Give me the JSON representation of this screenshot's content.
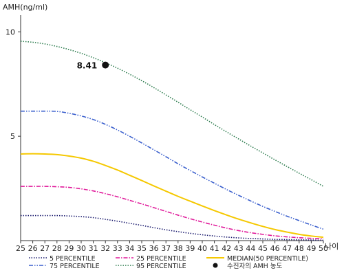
{
  "chart_data": {
    "type": "line",
    "ylabel": "AMH(ng/ml)",
    "xlabel": "나이",
    "xlim": [
      25,
      50
    ],
    "ylim": [
      0,
      10.8
    ],
    "x": [
      25,
      26,
      27,
      28,
      29,
      30,
      31,
      32,
      33,
      34,
      35,
      36,
      37,
      38,
      39,
      40,
      41,
      42,
      43,
      44,
      45,
      46,
      47,
      48,
      49,
      50
    ],
    "x_ticks": [
      "25",
      "26",
      "27",
      "28",
      "29",
      "30",
      "31",
      "32",
      "33",
      "34",
      "35",
      "36",
      "37",
      "38",
      "39",
      "40",
      "41",
      "42",
      "43",
      "44",
      "45",
      "46",
      "47",
      "48",
      "49",
      "50"
    ],
    "y_ticks": [
      {
        "value": 5,
        "label": "5"
      },
      {
        "value": 10,
        "label": "10"
      }
    ],
    "series": [
      {
        "name": "5 PERCENTILE",
        "style": "dotted",
        "color": "#1a1a6e",
        "values": [
          1.2,
          1.2,
          1.2,
          1.2,
          1.18,
          1.15,
          1.1,
          1.02,
          0.93,
          0.83,
          0.73,
          0.62,
          0.52,
          0.43,
          0.35,
          0.28,
          0.22,
          0.17,
          0.13,
          0.1,
          0.08,
          0.06,
          0.05,
          0.04,
          0.03,
          0.02
        ]
      },
      {
        "name": "25 PERCENTILE",
        "style": "dashdot",
        "color": "#e0199a",
        "values": [
          2.6,
          2.6,
          2.6,
          2.58,
          2.55,
          2.48,
          2.38,
          2.25,
          2.1,
          1.93,
          1.76,
          1.58,
          1.4,
          1.22,
          1.05,
          0.89,
          0.74,
          0.6,
          0.48,
          0.38,
          0.3,
          0.23,
          0.18,
          0.14,
          0.11,
          0.09
        ]
      },
      {
        "name": "MEDIAN(50 PERCENTILE)",
        "style": "solid",
        "color": "#f5c800",
        "values": [
          4.15,
          4.16,
          4.15,
          4.12,
          4.05,
          3.95,
          3.8,
          3.6,
          3.38,
          3.13,
          2.88,
          2.62,
          2.37,
          2.12,
          1.89,
          1.66,
          1.44,
          1.23,
          1.03,
          0.85,
          0.68,
          0.53,
          0.41,
          0.3,
          0.22,
          0.16
        ]
      },
      {
        "name": "75 PERCENTILE",
        "style": "dashdotdot",
        "color": "#3a5fcd",
        "values": [
          6.2,
          6.2,
          6.2,
          6.19,
          6.1,
          5.97,
          5.8,
          5.57,
          5.3,
          5.0,
          4.68,
          4.35,
          4.02,
          3.68,
          3.36,
          3.05,
          2.75,
          2.45,
          2.17,
          1.9,
          1.64,
          1.4,
          1.17,
          0.96,
          0.75,
          0.55
        ]
      },
      {
        "name": "95 PERCENTILE",
        "style": "dotted",
        "color": "#2e7d4f",
        "values": [
          9.55,
          9.5,
          9.42,
          9.3,
          9.15,
          8.97,
          8.76,
          8.52,
          8.26,
          7.97,
          7.66,
          7.33,
          6.98,
          6.63,
          6.27,
          5.92,
          5.56,
          5.21,
          4.87,
          4.53,
          4.2,
          3.87,
          3.55,
          3.23,
          2.92,
          2.6
        ]
      }
    ],
    "marker": {
      "name": "수진자의 AMH 농도",
      "x": 32,
      "y": 8.41,
      "label": "8.41",
      "color": "#111111"
    },
    "grid": false,
    "legend_position": "bottom"
  }
}
